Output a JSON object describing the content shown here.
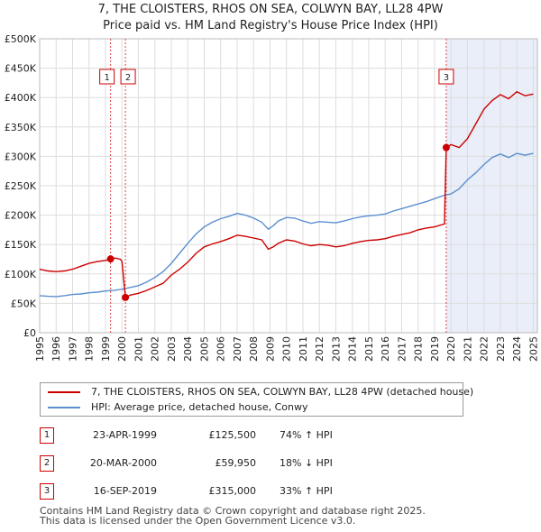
{
  "title_line1": "7, THE CLOISTERS, RHOS ON SEA, COLWYN BAY, LL28 4PW",
  "title_line2": "Price paid vs. HM Land Registry's House Price Index (HPI)",
  "chart_data": {
    "type": "line",
    "y_ticks": [
      "£0",
      "£50K",
      "£100K",
      "£150K",
      "£200K",
      "£250K",
      "£300K",
      "£350K",
      "£400K",
      "£450K",
      "£500K"
    ],
    "x_ticks": [
      "1995",
      "1996",
      "1997",
      "1998",
      "1999",
      "2000",
      "2001",
      "2002",
      "2003",
      "2004",
      "2005",
      "2006",
      "2007",
      "2008",
      "2009",
      "2010",
      "2011",
      "2012",
      "2013",
      "2014",
      "2015",
      "2016",
      "2017",
      "2018",
      "2019",
      "2020",
      "2021",
      "2022",
      "2023",
      "2024",
      "2025"
    ],
    "xlim": [
      1995,
      2025.25
    ],
    "ylim": [
      0,
      500000
    ],
    "grid": true,
    "series": [
      {
        "name": "7, THE CLOISTERS, RHOS ON SEA, COLWYN BAY, LL28 4PW (detached house)",
        "color": "#cc0000",
        "points": [
          [
            1995,
            108000
          ],
          [
            1995.5,
            105000
          ],
          [
            1996,
            104000
          ],
          [
            1996.5,
            105000
          ],
          [
            1997,
            108000
          ],
          [
            1997.5,
            113000
          ],
          [
            1998,
            118000
          ],
          [
            1998.5,
            121000
          ],
          [
            1999,
            123000
          ],
          [
            1999.31,
            125500
          ],
          [
            1999.6,
            127000
          ],
          [
            1999.9,
            125000
          ],
          [
            2000,
            122000
          ],
          [
            2000.21,
            59950
          ],
          [
            2000.5,
            64000
          ],
          [
            2001,
            67000
          ],
          [
            2001.5,
            72000
          ],
          [
            2002,
            78000
          ],
          [
            2002.5,
            84000
          ],
          [
            2003,
            98000
          ],
          [
            2003.5,
            108000
          ],
          [
            2004,
            120000
          ],
          [
            2004.5,
            135000
          ],
          [
            2005,
            146000
          ],
          [
            2005.5,
            151000
          ],
          [
            2006,
            155000
          ],
          [
            2006.5,
            160000
          ],
          [
            2007,
            166000
          ],
          [
            2007.5,
            164000
          ],
          [
            2008,
            161000
          ],
          [
            2008.5,
            158000
          ],
          [
            2008.9,
            142000
          ],
          [
            2009.2,
            146000
          ],
          [
            2009.5,
            152000
          ],
          [
            2010,
            158000
          ],
          [
            2010.5,
            156000
          ],
          [
            2011,
            151000
          ],
          [
            2011.5,
            148000
          ],
          [
            2012,
            150000
          ],
          [
            2012.5,
            149000
          ],
          [
            2013,
            146000
          ],
          [
            2013.5,
            148000
          ],
          [
            2014,
            152000
          ],
          [
            2014.5,
            155000
          ],
          [
            2015,
            157000
          ],
          [
            2015.5,
            158000
          ],
          [
            2016,
            160000
          ],
          [
            2016.5,
            164000
          ],
          [
            2017,
            167000
          ],
          [
            2017.5,
            170000
          ],
          [
            2018,
            175000
          ],
          [
            2018.5,
            178000
          ],
          [
            2019,
            180000
          ],
          [
            2019.6,
            185000
          ],
          [
            2019.71,
            315000
          ],
          [
            2020,
            320000
          ],
          [
            2020.5,
            315000
          ],
          [
            2021,
            330000
          ],
          [
            2021.5,
            355000
          ],
          [
            2022,
            380000
          ],
          [
            2022.5,
            395000
          ],
          [
            2023,
            405000
          ],
          [
            2023.5,
            398000
          ],
          [
            2024,
            410000
          ],
          [
            2024.5,
            403000
          ],
          [
            2025,
            406000
          ]
        ]
      },
      {
        "name": "HPI: Average price, detached house, Conwy",
        "color": "#5b8fd0",
        "points": [
          [
            1995,
            63000
          ],
          [
            1995.5,
            62000
          ],
          [
            1996,
            61500
          ],
          [
            1996.5,
            63000
          ],
          [
            1997,
            65000
          ],
          [
            1997.5,
            66000
          ],
          [
            1998,
            68000
          ],
          [
            1998.5,
            69000
          ],
          [
            1999,
            71000
          ],
          [
            1999.5,
            72000
          ],
          [
            2000,
            74000
          ],
          [
            2000.5,
            77000
          ],
          [
            2001,
            80000
          ],
          [
            2001.5,
            86000
          ],
          [
            2002,
            94000
          ],
          [
            2002.5,
            104000
          ],
          [
            2003,
            118000
          ],
          [
            2003.5,
            135000
          ],
          [
            2004,
            152000
          ],
          [
            2004.5,
            168000
          ],
          [
            2005,
            180000
          ],
          [
            2005.5,
            188000
          ],
          [
            2006,
            194000
          ],
          [
            2006.5,
            198000
          ],
          [
            2007,
            203000
          ],
          [
            2007.5,
            200000
          ],
          [
            2008,
            195000
          ],
          [
            2008.5,
            188000
          ],
          [
            2008.9,
            176000
          ],
          [
            2009.2,
            182000
          ],
          [
            2009.5,
            190000
          ],
          [
            2010,
            196000
          ],
          [
            2010.5,
            195000
          ],
          [
            2011,
            190000
          ],
          [
            2011.5,
            186000
          ],
          [
            2012,
            189000
          ],
          [
            2012.5,
            188000
          ],
          [
            2013,
            187000
          ],
          [
            2013.5,
            190000
          ],
          [
            2014,
            194000
          ],
          [
            2014.5,
            197000
          ],
          [
            2015,
            199000
          ],
          [
            2015.5,
            200000
          ],
          [
            2016,
            202000
          ],
          [
            2016.5,
            207000
          ],
          [
            2017,
            211000
          ],
          [
            2017.5,
            215000
          ],
          [
            2018,
            219000
          ],
          [
            2018.5,
            223000
          ],
          [
            2019,
            228000
          ],
          [
            2019.5,
            233000
          ],
          [
            2020,
            236000
          ],
          [
            2020.5,
            245000
          ],
          [
            2021,
            260000
          ],
          [
            2021.5,
            272000
          ],
          [
            2022,
            286000
          ],
          [
            2022.5,
            298000
          ],
          [
            2023,
            304000
          ],
          [
            2023.5,
            298000
          ],
          [
            2024,
            305000
          ],
          [
            2024.5,
            302000
          ],
          [
            2025,
            305000
          ]
        ]
      }
    ],
    "events": [
      {
        "label": "1",
        "x": 1999.31,
        "y": 125500
      },
      {
        "label": "2",
        "x": 2000.21,
        "y": 59950
      },
      {
        "label": "3",
        "x": 2019.71,
        "y": 315000
      }
    ],
    "shade_from": 2019.71
  },
  "legend": {
    "red_label": "7, THE CLOISTERS, RHOS ON SEA, COLWYN BAY, LL28 4PW (detached house)",
    "blue_label": "HPI: Average price, detached house, Conwy"
  },
  "transactions": [
    {
      "num": "1",
      "date": "23-APR-1999",
      "price": "£125,500",
      "hpi": "74% ↑ HPI"
    },
    {
      "num": "2",
      "date": "20-MAR-2000",
      "price": "£59,950",
      "hpi": "18% ↓ HPI"
    },
    {
      "num": "3",
      "date": "16-SEP-2019",
      "price": "£315,000",
      "hpi": "33% ↑ HPI"
    }
  ],
  "footer_line1": "Contains HM Land Registry data © Crown copyright and database right 2025.",
  "footer_line2": "This data is licensed under the Open Government Licence v3.0."
}
